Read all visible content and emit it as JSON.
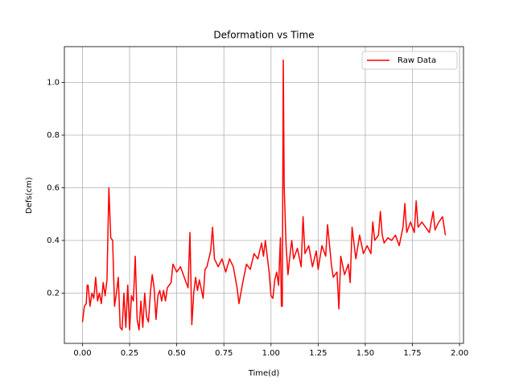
{
  "chart_data": {
    "type": "line",
    "title": "Deformation vs Time",
    "x_label": "Time(d)",
    "y_label": "Defs(cm)",
    "x": [
      0.0,
      0.01,
      0.02,
      0.025,
      0.03,
      0.04,
      0.05,
      0.06,
      0.07,
      0.08,
      0.09,
      0.1,
      0.11,
      0.12,
      0.13,
      0.14,
      0.15,
      0.16,
      0.17,
      0.18,
      0.19,
      0.2,
      0.21,
      0.22,
      0.23,
      0.24,
      0.25,
      0.26,
      0.27,
      0.28,
      0.29,
      0.3,
      0.31,
      0.32,
      0.33,
      0.34,
      0.35,
      0.36,
      0.37,
      0.38,
      0.39,
      0.4,
      0.41,
      0.42,
      0.43,
      0.44,
      0.45,
      0.47,
      0.48,
      0.5,
      0.52,
      0.54,
      0.56,
      0.57,
      0.58,
      0.59,
      0.6,
      0.61,
      0.62,
      0.64,
      0.65,
      0.66,
      0.68,
      0.69,
      0.7,
      0.72,
      0.74,
      0.76,
      0.78,
      0.8,
      0.82,
      0.83,
      0.85,
      0.87,
      0.89,
      0.91,
      0.93,
      0.95,
      0.96,
      0.97,
      0.99,
      1.0,
      1.01,
      1.02,
      1.03,
      1.04,
      1.05,
      1.055,
      1.06,
      1.065,
      1.07,
      1.08,
      1.09,
      1.1,
      1.11,
      1.12,
      1.14,
      1.16,
      1.17,
      1.18,
      1.2,
      1.22,
      1.24,
      1.25,
      1.27,
      1.29,
      1.3,
      1.32,
      1.33,
      1.35,
      1.36,
      1.37,
      1.39,
      1.41,
      1.42,
      1.43,
      1.45,
      1.47,
      1.49,
      1.51,
      1.53,
      1.54,
      1.55,
      1.57,
      1.58,
      1.59,
      1.6,
      1.62,
      1.64,
      1.66,
      1.68,
      1.7,
      1.71,
      1.72,
      1.74,
      1.76,
      1.77,
      1.78,
      1.8,
      1.82,
      1.84,
      1.86,
      1.87,
      1.89,
      1.91,
      1.925
    ],
    "series": [
      {
        "name": "Raw Data",
        "color": "#ff0000",
        "values": [
          0.09,
          0.15,
          0.16,
          0.23,
          0.23,
          0.15,
          0.2,
          0.18,
          0.26,
          0.17,
          0.2,
          0.16,
          0.24,
          0.19,
          0.25,
          0.6,
          0.41,
          0.4,
          0.15,
          0.2,
          0.26,
          0.07,
          0.06,
          0.2,
          0.07,
          0.23,
          0.06,
          0.19,
          0.17,
          0.34,
          0.1,
          0.06,
          0.17,
          0.07,
          0.2,
          0.11,
          0.09,
          0.2,
          0.27,
          0.22,
          0.1,
          0.19,
          0.21,
          0.17,
          0.21,
          0.17,
          0.22,
          0.24,
          0.31,
          0.28,
          0.3,
          0.26,
          0.22,
          0.43,
          0.08,
          0.2,
          0.26,
          0.21,
          0.25,
          0.18,
          0.29,
          0.3,
          0.36,
          0.45,
          0.33,
          0.3,
          0.33,
          0.28,
          0.33,
          0.3,
          0.22,
          0.16,
          0.24,
          0.31,
          0.29,
          0.35,
          0.33,
          0.39,
          0.34,
          0.4,
          0.28,
          0.19,
          0.18,
          0.25,
          0.28,
          0.23,
          0.41,
          0.15,
          0.15,
          1.085,
          0.6,
          0.38,
          0.27,
          0.34,
          0.4,
          0.33,
          0.37,
          0.3,
          0.49,
          0.35,
          0.38,
          0.3,
          0.36,
          0.29,
          0.38,
          0.34,
          0.46,
          0.31,
          0.26,
          0.28,
          0.14,
          0.34,
          0.27,
          0.31,
          0.24,
          0.45,
          0.33,
          0.42,
          0.35,
          0.38,
          0.35,
          0.47,
          0.4,
          0.42,
          0.51,
          0.42,
          0.39,
          0.41,
          0.4,
          0.42,
          0.38,
          0.45,
          0.54,
          0.43,
          0.47,
          0.43,
          0.55,
          0.45,
          0.47,
          0.45,
          0.43,
          0.51,
          0.44,
          0.47,
          0.49,
          0.42
        ]
      }
    ],
    "xlim": [
      -0.096,
      2.021
    ],
    "ylim": [
      0.009,
      1.136
    ],
    "xticks": [
      {
        "value": 0,
        "label": "0.00"
      },
      0.25,
      {
        "value": 0.5,
        "label": "0.50"
      },
      0.75,
      {
        "value": 1,
        "label": "1.00"
      },
      1.25,
      {
        "value": 1.5,
        "label": "1.50"
      },
      1.75,
      {
        "value": 2,
        "label": "2.00"
      }
    ],
    "yticks": [
      0.2,
      0.4,
      0.6,
      0.8,
      {
        "value": 1,
        "label": "1.0"
      }
    ],
    "grid": true,
    "legend": "upper right"
  }
}
